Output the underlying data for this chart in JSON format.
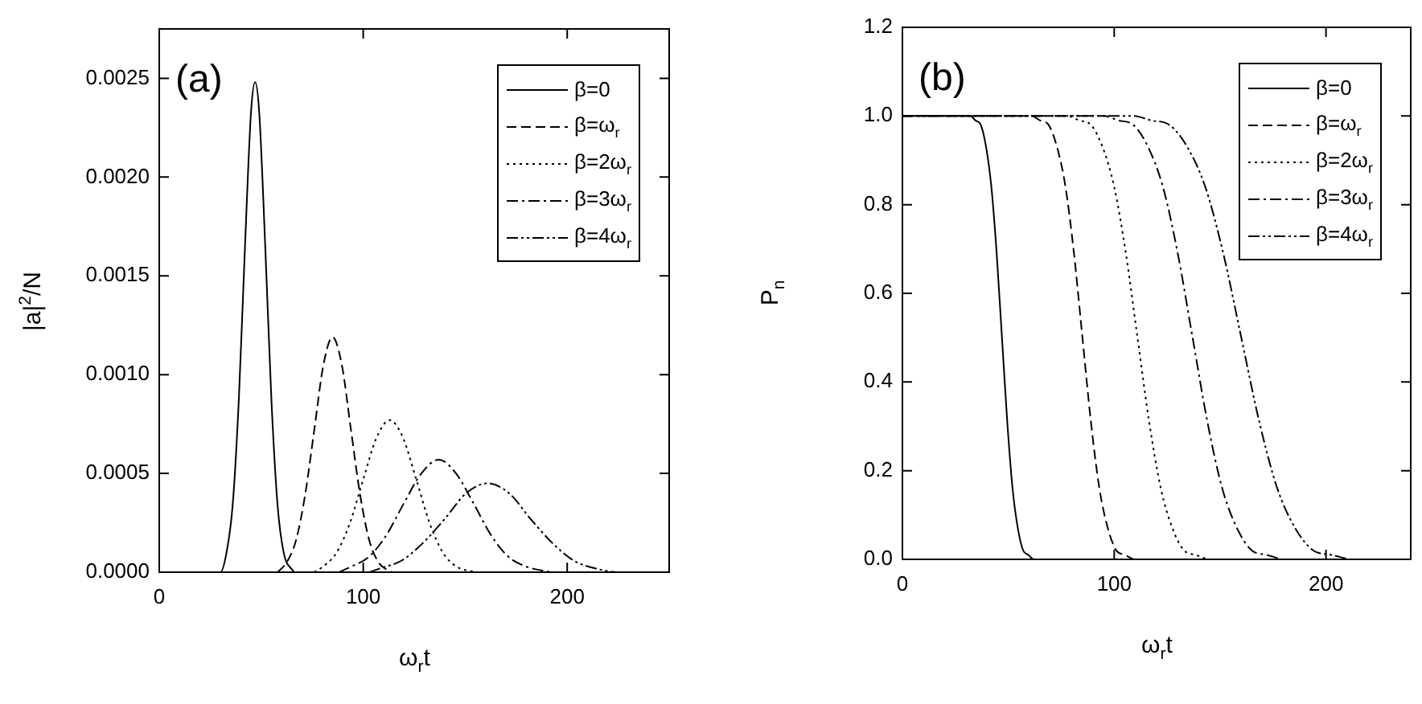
{
  "chart_data": [
    {
      "type": "line",
      "xlabel": "ω$_{r}$t",
      "ylabel": "|a|$^{2}$/N",
      "annotations": [
        "(a)"
      ],
      "legend": "top right",
      "grid": false,
      "xlim": [
        0,
        250
      ],
      "xticks": [
        0,
        100,
        200
      ],
      "ylim": [
        0,
        0.00275
      ],
      "yticks": [
        {
          "value": 0,
          "label": "0.0000"
        },
        {
          "value": 0.0005,
          "label": "0.0005"
        },
        {
          "value": 0.001,
          "label": "0.0010"
        },
        {
          "value": 0.0015,
          "label": "0.0015"
        },
        {
          "value": 0.002,
          "label": "0.0020"
        },
        {
          "value": 0.0025,
          "label": "0.0025"
        }
      ],
      "series": [
        {
          "name": "β=0",
          "color": "#000000",
          "line_style": "solid",
          "x": [
            0,
            30,
            33,
            36,
            39,
            42,
            45,
            47,
            49,
            52,
            55,
            58,
            61,
            66
          ],
          "values": [
            0,
            0,
            0.0001,
            0.00034,
            0.00087,
            0.00164,
            0.00233,
            0.00248,
            0.00233,
            0.00164,
            0.00087,
            0.00034,
            0.0001,
            0
          ]
        },
        {
          "name": "β=ω$_{r}$",
          "color": "#000000",
          "line_style": "dashed",
          "x": [
            58,
            62.5,
            67,
            71.5,
            76,
            80.5,
            85,
            89.5,
            94,
            98.5,
            103,
            107.5,
            114
          ],
          "values": [
            0,
            5e-05,
            0.00016,
            0.00039,
            0.00072,
            0.00105,
            0.00119,
            0.00105,
            0.00072,
            0.00039,
            0.00016,
            5e-05,
            0
          ]
        },
        {
          "name": "β=2ω$_{r}$",
          "color": "#000000",
          "line_style": "dotted",
          "x": [
            76,
            80.5,
            87,
            93.5,
            100,
            106.5,
            113,
            119.5,
            126,
            132.5,
            139,
            145.5,
            155
          ],
          "values": [
            0,
            3e-05,
            0.0001,
            0.00025,
            0.00047,
            0.00068,
            0.00077,
            0.00068,
            0.00047,
            0.00025,
            0.0001,
            3e-05,
            0
          ]
        },
        {
          "name": "β=3ω$_{r}$",
          "color": "#000000",
          "line_style": "dashdot",
          "x": [
            88,
            94.5,
            103,
            111.5,
            120,
            128.5,
            137,
            145.5,
            154,
            162.5,
            171,
            179.5,
            192
          ],
          "values": [
            0,
            3e-05,
            8e-05,
            0.00019,
            0.00035,
            0.0005,
            0.00057,
            0.0005,
            0.00035,
            0.00019,
            8e-05,
            3e-05,
            0
          ]
        },
        {
          "name": "β=4ω$_{r}$",
          "color": "#000000",
          "line_style": "dashdotdot",
          "x": [
            103,
            108.5,
            119,
            129.5,
            140,
            150.5,
            161,
            171.5,
            182,
            192.5,
            203,
            213.5,
            226,
            250
          ],
          "values": [
            0,
            2e-05,
            6e-05,
            0.00015,
            0.00027,
            0.0004,
            0.00045,
            0.0004,
            0.00027,
            0.00015,
            6e-05,
            2e-05,
            0,
            0
          ]
        }
      ]
    },
    {
      "type": "line",
      "xlabel": "ω$_{r}$t",
      "ylabel": "P$_{n}$",
      "annotations": [
        "(b)"
      ],
      "legend": "top right",
      "grid": false,
      "xlim": [
        0,
        240
      ],
      "xticks": [
        0,
        100,
        200
      ],
      "ylim": [
        0,
        1.2
      ],
      "yticks": [
        {
          "value": 0,
          "label": "0.0"
        },
        {
          "value": 0.2,
          "label": "0.2"
        },
        {
          "value": 0.4,
          "label": "0.4"
        },
        {
          "value": 0.6,
          "label": "0.6"
        },
        {
          "value": 0.8,
          "label": "0.8"
        },
        {
          "value": 1,
          "label": "1.0"
        },
        {
          "value": 1.2,
          "label": "1.2"
        }
      ],
      "series": [
        {
          "name": "β=0",
          "color": "#000000",
          "line_style": "solid",
          "x": [
            0,
            32,
            34.5,
            37,
            39.5,
            42,
            44.5,
            47,
            49.5,
            52,
            54.5,
            57,
            59.5,
            62,
            240
          ],
          "values": [
            1,
            1,
            0.99,
            0.98,
            0.93,
            0.84,
            0.69,
            0.5,
            0.31,
            0.16,
            0.07,
            0.02,
            0.01,
            0,
            0
          ]
        },
        {
          "name": "β=ω$_{r}$",
          "color": "#000000",
          "line_style": "dashed",
          "x": [
            0,
            61,
            65,
            69,
            73,
            77,
            81,
            85,
            89,
            93,
            97,
            101,
            105,
            109
          ],
          "values": [
            1,
            1,
            0.99,
            0.98,
            0.93,
            0.84,
            0.69,
            0.5,
            0.31,
            0.16,
            0.07,
            0.02,
            0.01,
            0
          ]
        },
        {
          "name": "β=2ω$_{r}$",
          "color": "#000000",
          "line_style": "dotted",
          "x": [
            0,
            78,
            83.5,
            89,
            94.5,
            100,
            105.5,
            111,
            116.5,
            122,
            127.5,
            133,
            138.5,
            144
          ],
          "values": [
            1,
            1,
            0.99,
            0.98,
            0.93,
            0.84,
            0.69,
            0.5,
            0.31,
            0.16,
            0.07,
            0.02,
            0.01,
            0
          ]
        },
        {
          "name": "β=3ω$_{r}$",
          "color": "#000000",
          "line_style": "dashdot",
          "x": [
            0,
            95,
            102,
            109,
            116,
            123,
            130,
            137,
            144,
            151,
            158,
            165,
            172,
            179
          ],
          "values": [
            1,
            1,
            0.99,
            0.98,
            0.93,
            0.84,
            0.69,
            0.5,
            0.31,
            0.16,
            0.07,
            0.02,
            0.01,
            0
          ]
        },
        {
          "name": "β=4ω$_{r}$",
          "color": "#000000",
          "line_style": "dashdotdot",
          "x": [
            0,
            109,
            117.5,
            126,
            134.5,
            143,
            151.5,
            160,
            168.5,
            177,
            185.5,
            194,
            202.5,
            211
          ],
          "values": [
            1,
            1,
            0.99,
            0.98,
            0.93,
            0.84,
            0.69,
            0.5,
            0.31,
            0.16,
            0.07,
            0.02,
            0.01,
            0
          ]
        }
      ]
    }
  ]
}
